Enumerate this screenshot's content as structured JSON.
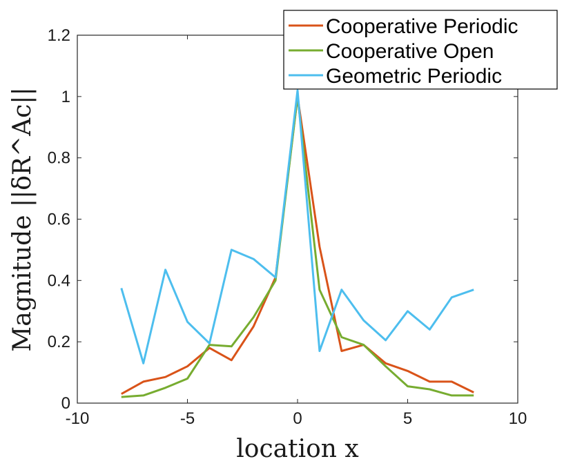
{
  "chart_data": {
    "type": "line",
    "xlabel": "location x",
    "ylabel": "Magnitude ||δR^Ac||",
    "xlim": [
      -10,
      10
    ],
    "ylim": [
      0,
      1.2
    ],
    "xticks": [
      -10,
      -5,
      0,
      5,
      10
    ],
    "yticks": [
      0,
      0.2,
      0.4,
      0.6,
      0.8,
      1,
      1.2
    ],
    "xtick_labels": [
      "-10",
      "-5",
      "0",
      "5",
      "10"
    ],
    "ytick_labels": [
      "0",
      "0.2",
      "0.4",
      "0.6",
      "0.8",
      "1",
      "1.2"
    ],
    "grid": false,
    "legend_position": "top-right",
    "x": [
      -8,
      -7,
      -6,
      -5,
      -4,
      -3,
      -2,
      -1,
      0,
      1,
      2,
      3,
      4,
      5,
      6,
      7,
      8
    ],
    "series": [
      {
        "name": "Cooperative Periodic",
        "color": "#d95319",
        "values": [
          0.03,
          0.07,
          0.085,
          0.12,
          0.18,
          0.14,
          0.25,
          0.41,
          1.0,
          0.51,
          0.17,
          0.19,
          0.13,
          0.105,
          0.07,
          0.07,
          0.035
        ]
      },
      {
        "name": "Cooperative Open",
        "color": "#77ac30",
        "values": [
          0.02,
          0.025,
          0.05,
          0.08,
          0.19,
          0.185,
          0.28,
          0.4,
          1.0,
          0.37,
          0.215,
          0.19,
          0.12,
          0.055,
          0.045,
          0.025,
          0.025
        ]
      },
      {
        "name": "Geometric Periodic",
        "color": "#4dbeee",
        "values": [
          0.375,
          0.13,
          0.435,
          0.265,
          0.195,
          0.5,
          0.47,
          0.41,
          1.02,
          0.17,
          0.37,
          0.27,
          0.205,
          0.3,
          0.24,
          0.345,
          0.37
        ]
      }
    ]
  }
}
